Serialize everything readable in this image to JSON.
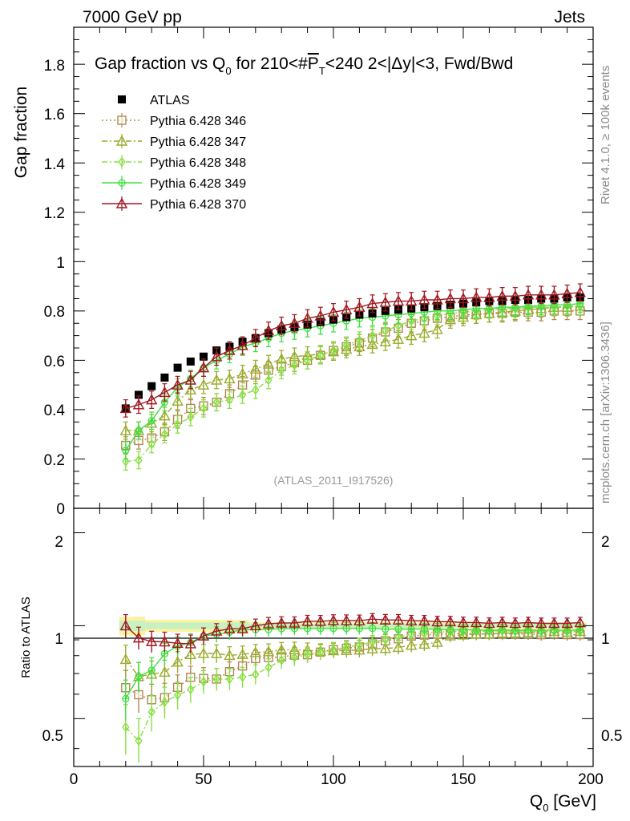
{
  "header": {
    "left": "7000 GeV pp",
    "right": "Jets"
  },
  "side_labels": {
    "rivet": "Rivet 4.1.0, ≥ 100k events",
    "mcplots": "mcplots.cern.ch [arXiv:1306.3436]"
  },
  "chart_data": {
    "type": "scatter",
    "title": "Gap fraction vs Q0 for 210<#PT<240  2<|Δy|<3, Fwd/Bwd",
    "title_parts": {
      "pre": "Gap fraction vs Q",
      "sub1": "0",
      "mid": " for 210<#",
      "over": "P",
      "sub2": "T",
      "post": "<240  2<|Δy|<3, Fwd/Bwd"
    },
    "analysis_id": "(ATLAS_2011_I917526)",
    "xlabel": "Q0 [GeV]",
    "xlabel_parts": {
      "main": "Q",
      "sub": "0",
      "unit": " [GeV]"
    },
    "ylabel": "Gap fraction",
    "ratio_ylabel": "Ratio to ATLAS",
    "xlim": [
      0,
      200
    ],
    "ylim": [
      0,
      1.95
    ],
    "ratio_ylim": [
      0.35,
      2.4
    ],
    "x_ticks": [
      "0",
      "50",
      "100",
      "150",
      "200"
    ],
    "y_ticks": [
      "0",
      "0.2",
      "0.4",
      "0.6",
      "0.8",
      "1",
      "1.2",
      "1.4",
      "1.6",
      "1.8"
    ],
    "ratio_ticks": [
      "0.5",
      "1",
      "2"
    ],
    "x": [
      20,
      25,
      30,
      35,
      40,
      45,
      50,
      55,
      60,
      65,
      70,
      75,
      80,
      85,
      90,
      95,
      100,
      105,
      110,
      115,
      120,
      125,
      130,
      135,
      140,
      145,
      150,
      155,
      160,
      165,
      170,
      175,
      180,
      185,
      190,
      195
    ],
    "series": [
      {
        "name": "ATLAS",
        "color": "#000000",
        "marker": "filled-square",
        "line": "none",
        "values": [
          0.405,
          0.46,
          0.495,
          0.53,
          0.57,
          0.595,
          0.615,
          0.64,
          0.655,
          0.675,
          0.69,
          0.71,
          0.725,
          0.735,
          0.745,
          0.755,
          0.765,
          0.775,
          0.785,
          0.79,
          0.8,
          0.805,
          0.81,
          0.815,
          0.82,
          0.825,
          0.83,
          0.835,
          0.84,
          0.84,
          0.845,
          0.845,
          0.85,
          0.85,
          0.855,
          0.855
        ]
      },
      {
        "name": "Pythia 6.428 346",
        "color": "#b08850",
        "marker": "open-square",
        "line": "dotted",
        "values": [
          0.255,
          0.275,
          0.285,
          0.31,
          0.36,
          0.405,
          0.415,
          0.43,
          0.465,
          0.5,
          0.54,
          0.56,
          0.575,
          0.59,
          0.6,
          0.62,
          0.64,
          0.655,
          0.67,
          0.69,
          0.715,
          0.73,
          0.75,
          0.76,
          0.77,
          0.775,
          0.785,
          0.785,
          0.79,
          0.79,
          0.795,
          0.795,
          0.795,
          0.8,
          0.8,
          0.8
        ]
      },
      {
        "name": "Pythia 6.428 347",
        "color": "#9aab2a",
        "marker": "open-triangle",
        "line": "dash-dot",
        "values": [
          0.315,
          0.315,
          0.345,
          0.375,
          0.435,
          0.48,
          0.5,
          0.52,
          0.525,
          0.545,
          0.565,
          0.585,
          0.605,
          0.615,
          0.62,
          0.625,
          0.635,
          0.645,
          0.655,
          0.665,
          0.675,
          0.685,
          0.7,
          0.71,
          0.725,
          0.765,
          0.775,
          0.785,
          0.79,
          0.795,
          0.8,
          0.805,
          0.81,
          0.815,
          0.815,
          0.82
        ]
      },
      {
        "name": "Pythia 6.428 348",
        "color": "#88e040",
        "marker": "open-diamond",
        "line": "dash-dot",
        "values": [
          0.19,
          0.195,
          0.26,
          0.3,
          0.34,
          0.37,
          0.405,
          0.43,
          0.44,
          0.46,
          0.48,
          0.52,
          0.56,
          0.58,
          0.6,
          0.62,
          0.64,
          0.66,
          0.68,
          0.7,
          0.72,
          0.74,
          0.76,
          0.77,
          0.78,
          0.79,
          0.795,
          0.8,
          0.805,
          0.81,
          0.81,
          0.815,
          0.815,
          0.815,
          0.82,
          0.82
        ]
      },
      {
        "name": "Pythia 6.428 349",
        "color": "#3ee03e",
        "marker": "open-circle-cross",
        "line": "solid",
        "values": [
          0.235,
          0.315,
          0.355,
          0.43,
          0.49,
          0.525,
          0.57,
          0.6,
          0.625,
          0.655,
          0.67,
          0.69,
          0.71,
          0.72,
          0.73,
          0.74,
          0.75,
          0.76,
          0.77,
          0.775,
          0.78,
          0.785,
          0.79,
          0.795,
          0.8,
          0.8,
          0.805,
          0.81,
          0.81,
          0.815,
          0.815,
          0.82,
          0.82,
          0.825,
          0.825,
          0.83
        ]
      },
      {
        "name": "Pythia 6.428 370",
        "color": "#a01820",
        "marker": "open-triangle",
        "line": "solid",
        "values": [
          0.405,
          0.42,
          0.44,
          0.47,
          0.5,
          0.52,
          0.57,
          0.615,
          0.64,
          0.66,
          0.69,
          0.72,
          0.74,
          0.75,
          0.77,
          0.78,
          0.795,
          0.805,
          0.815,
          0.83,
          0.835,
          0.84,
          0.84,
          0.845,
          0.845,
          0.85,
          0.85,
          0.855,
          0.855,
          0.86,
          0.86,
          0.865,
          0.865,
          0.865,
          0.87,
          0.875
        ]
      }
    ]
  }
}
